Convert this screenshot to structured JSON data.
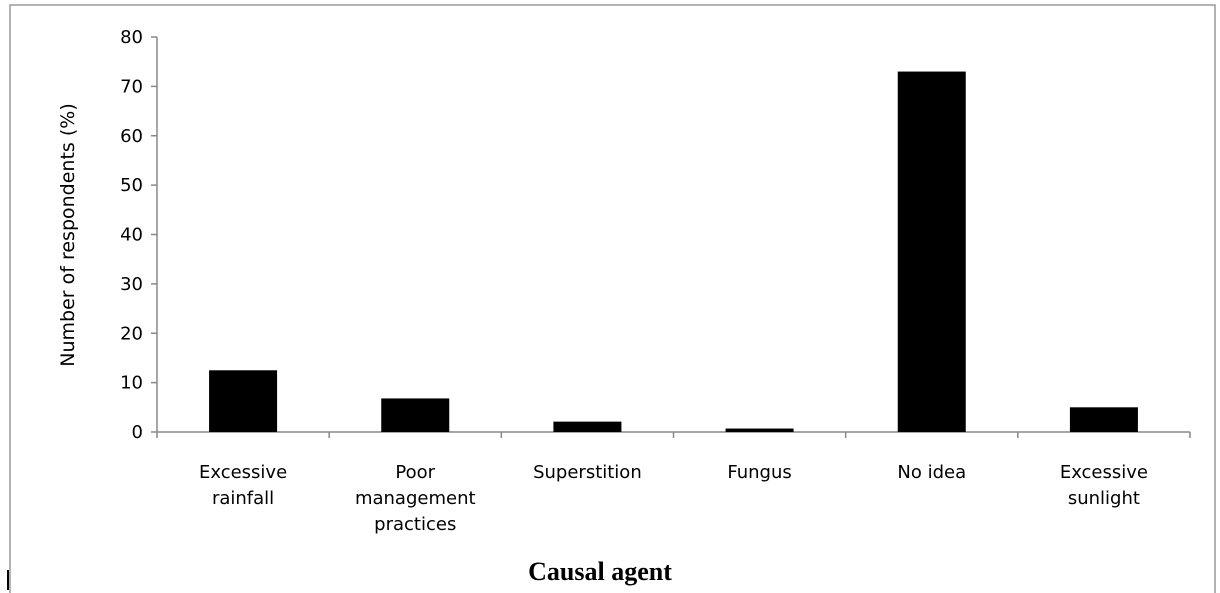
{
  "chart_data": {
    "type": "bar",
    "categories": [
      "Excessive rainfall",
      "Poor management practices",
      "Superstition",
      "Fungus",
      "No idea",
      "Excessive sunlight"
    ],
    "values": [
      12.5,
      6.8,
      2.1,
      0.7,
      73,
      5
    ],
    "color": "#000000",
    "ylim": [
      0,
      80
    ],
    "yticks": [
      0,
      10,
      20,
      30,
      40,
      50,
      60,
      70,
      80
    ],
    "ylabel": "Number of respondents (%)",
    "xlabel": "Causal agent",
    "grid": false
  }
}
